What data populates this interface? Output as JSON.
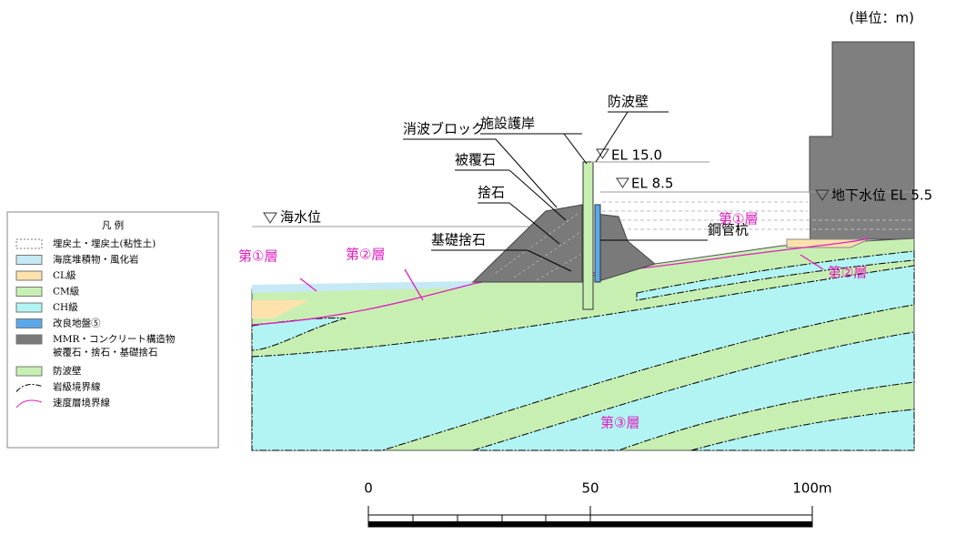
{
  "unit": "(単位：m)",
  "legend": {
    "title": "凡 例",
    "items": [
      "埋戻土・埋戻土(粘性土)",
      "海底堆積物・風化岩",
      "CL級",
      "CM級",
      "CH級",
      "改良地盤⑤",
      "MMR・コンクリート構造物",
      "被覆石・捨石・基礎捨石",
      "防波壁",
      "岩級境界線",
      "速度層境界線"
    ]
  },
  "labels": {
    "facility_revetment": "施設護岸",
    "seawall": "防波壁",
    "wave_block": "消波ブロック",
    "armor_stone": "被覆石",
    "rubble": "捨石",
    "foundation_rubble": "基礎捨石",
    "steel_pile": "鋼管杭",
    "el_top": "EL 15.0",
    "el_mid": "EL 8.5",
    "groundwater": "地下水位 EL 5.5",
    "sea_level": "海水位"
  },
  "layers": [
    "第①層",
    "第②層",
    "第①層",
    "第②層",
    "第③層"
  ],
  "scale": {
    "ticks": [
      "0",
      "50",
      "100m"
    ]
  }
}
